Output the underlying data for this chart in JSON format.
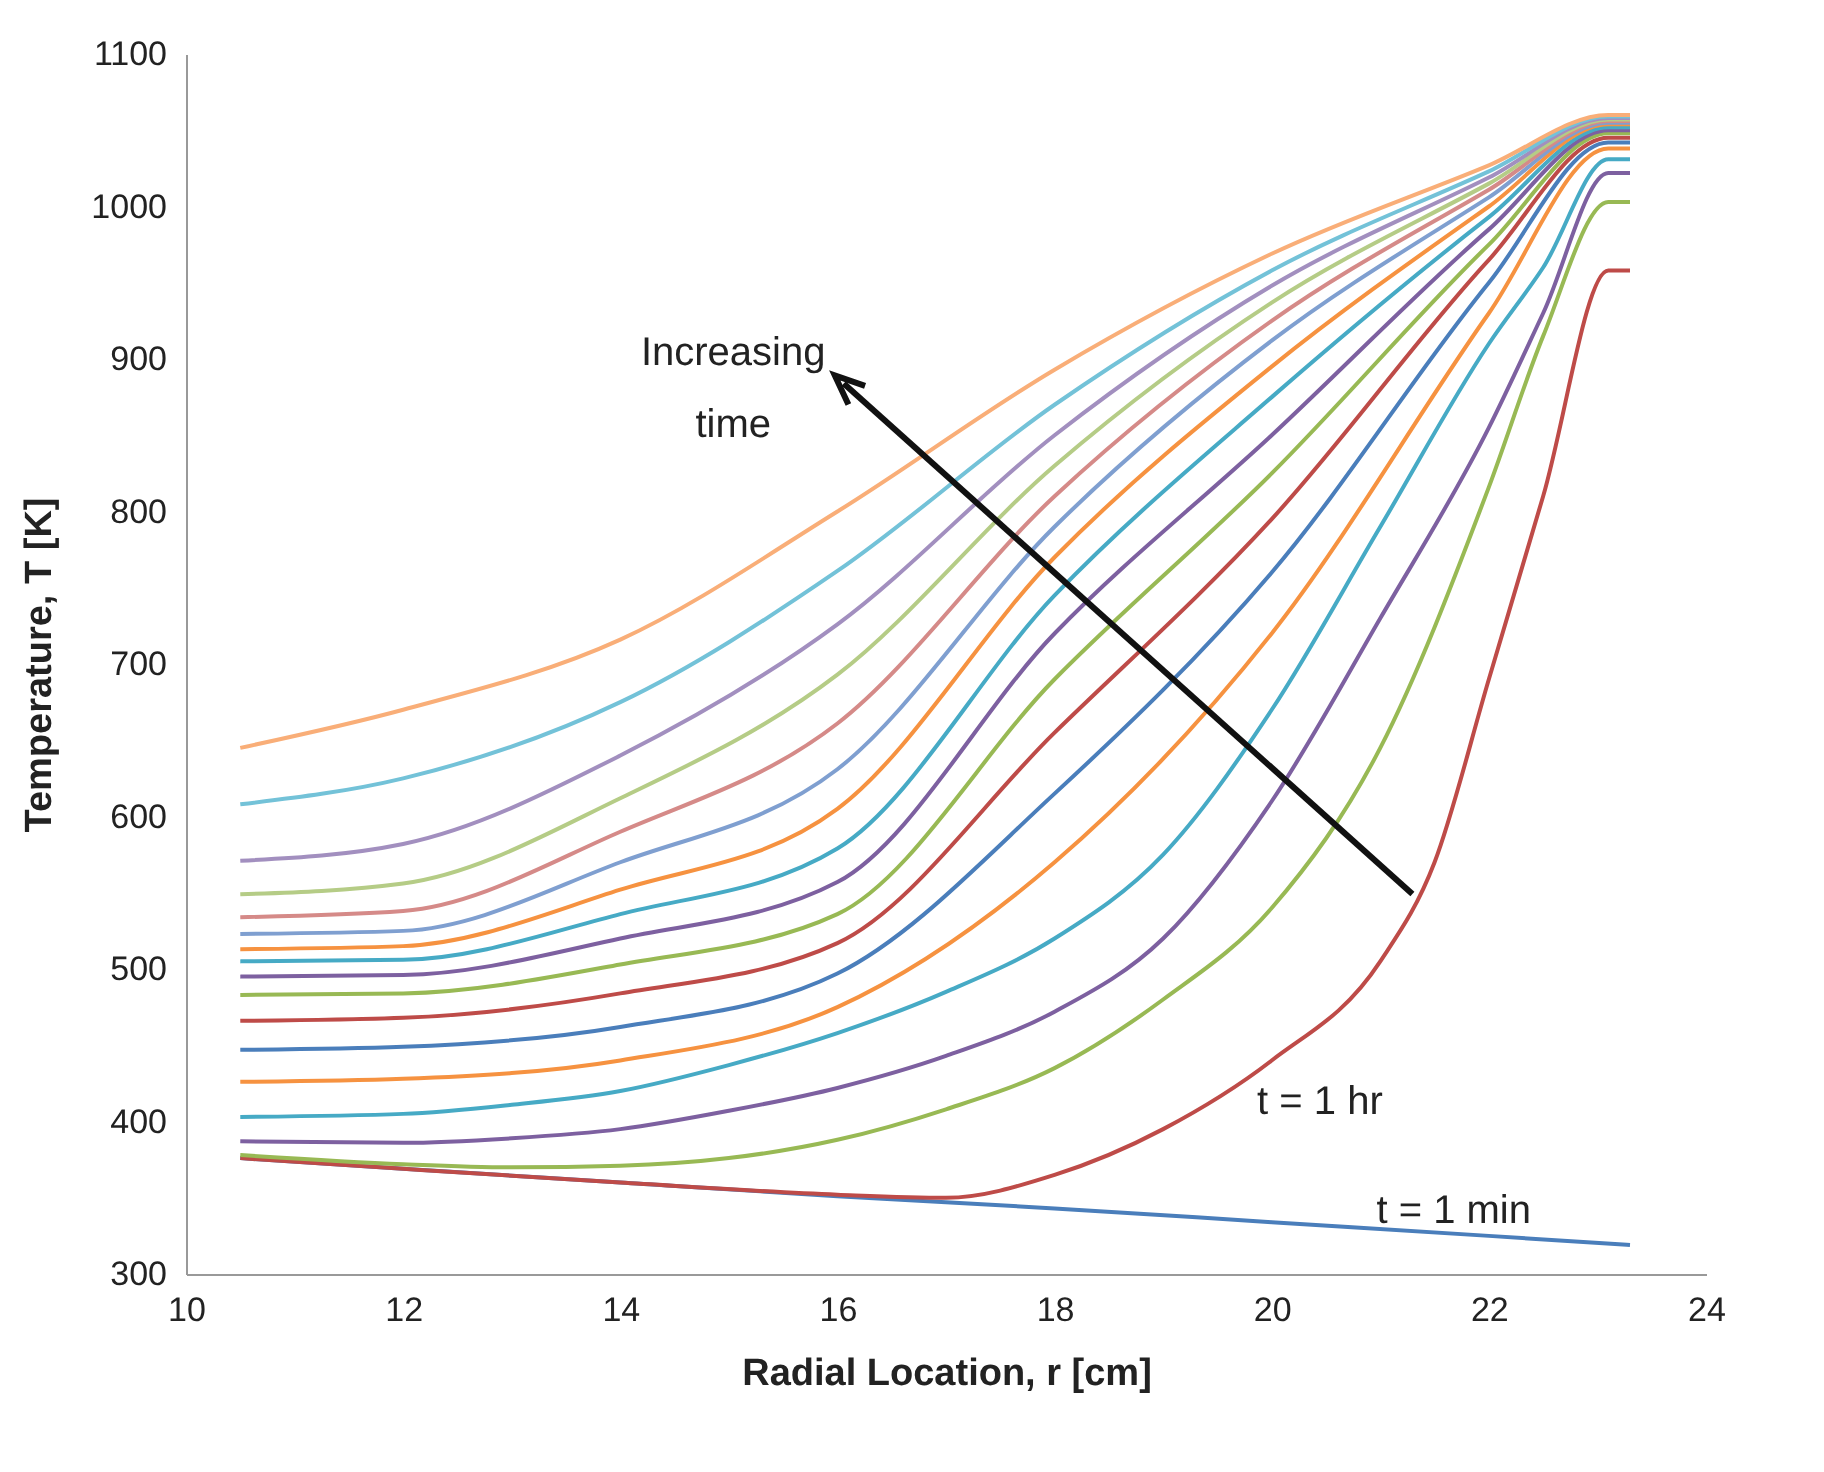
{
  "chart_data": {
    "type": "line",
    "xlabel": "Radial Location, r [cm]",
    "ylabel": "Temperature, T [K]",
    "xlim": [
      10,
      24
    ],
    "xticks": [
      10,
      12,
      14,
      16,
      18,
      20,
      22,
      24
    ],
    "ylim": [
      300,
      1100
    ],
    "yticks": [
      300,
      400,
      500,
      600,
      700,
      800,
      900,
      1000,
      1100
    ],
    "grid": false,
    "legend": false,
    "annotations": [
      "Increasing time",
      "t = 1 hr",
      "t = 1 min"
    ],
    "series": [
      {
        "color": "#4a7ebb",
        "x": [
          10.5,
          12,
          14,
          16,
          18,
          20,
          22,
          23.3
        ],
        "values": [
          376,
          369,
          360,
          351,
          343,
          334,
          325,
          319
        ]
      },
      {
        "color": "#be4b48",
        "x": [
          10.5,
          12,
          14,
          16,
          17,
          18,
          19,
          20,
          21,
          21.5,
          22,
          22.5,
          23.1,
          23.3
        ],
        "values": [
          376,
          369,
          360,
          352,
          350,
          365,
          395,
          440,
          505,
          570,
          690,
          810,
          958,
          958
        ]
      },
      {
        "color": "#98b954",
        "x": [
          10.5,
          12,
          13,
          14,
          15,
          16,
          17,
          18,
          19,
          20,
          21,
          22,
          22.5,
          23.1,
          23.3
        ],
        "values": [
          378,
          372,
          370,
          371,
          376,
          388,
          408,
          435,
          480,
          540,
          645,
          816,
          915,
          1003,
          1003
        ]
      },
      {
        "color": "#7d60a0",
        "x": [
          10.5,
          12,
          13,
          14,
          15,
          16,
          17,
          18,
          19,
          20,
          21,
          22,
          22.5,
          23.1,
          23.3
        ],
        "values": [
          387,
          386,
          389,
          395,
          407,
          422,
          443,
          472,
          520,
          610,
          730,
          855,
          930,
          1022,
          1022
        ]
      },
      {
        "color": "#46aac5",
        "x": [
          10.5,
          12,
          13,
          14,
          15,
          16,
          17,
          18,
          19,
          20,
          21,
          22,
          22.5,
          23.1,
          23.3
        ],
        "values": [
          403,
          405,
          411,
          420,
          437,
          458,
          485,
          520,
          575,
          670,
          790,
          910,
          960,
          1031,
          1031
        ]
      },
      {
        "color": "#f69240",
        "x": [
          10.5,
          12,
          14,
          16,
          18,
          20,
          22,
          23.1,
          23.3
        ],
        "values": [
          426,
          428,
          440,
          475,
          570,
          720,
          930,
          1038,
          1038
        ]
      },
      {
        "color": "#4a7ebb",
        "x": [
          10.5,
          12,
          14,
          16,
          18,
          20,
          22,
          23.1,
          23.3
        ],
        "values": [
          447,
          449,
          462,
          497,
          615,
          760,
          950,
          1042,
          1042
        ]
      },
      {
        "color": "#be4b48",
        "x": [
          10.5,
          12,
          14,
          16,
          18,
          20,
          22,
          23.1,
          23.3
        ],
        "values": [
          466,
          468,
          484,
          517,
          655,
          795,
          965,
          1045,
          1045
        ]
      },
      {
        "color": "#98b954",
        "x": [
          10.5,
          12,
          14,
          16,
          18,
          20,
          22,
          23.1,
          23.3
        ],
        "values": [
          483,
          484,
          503,
          536,
          690,
          825,
          975,
          1048,
          1048
        ]
      },
      {
        "color": "#7d60a0",
        "x": [
          10.5,
          12,
          14,
          16,
          18,
          20,
          22,
          23.1,
          23.3
        ],
        "values": [
          495,
          496,
          520,
          557,
          720,
          850,
          985,
          1050,
          1050
        ]
      },
      {
        "color": "#46aac5",
        "x": [
          10.5,
          12,
          14,
          16,
          18,
          20,
          22,
          23.1,
          23.3
        ],
        "values": [
          505,
          506,
          536,
          579,
          745,
          875,
          993,
          1052,
          1052
        ]
      },
      {
        "color": "#f69240",
        "x": [
          10.5,
          12,
          14,
          16,
          18,
          20,
          22,
          23.1,
          23.3
        ],
        "values": [
          513,
          515,
          552,
          605,
          770,
          895,
          1000,
          1054,
          1054
        ]
      },
      {
        "color": "#7f9fd0",
        "x": [
          10.5,
          12,
          14,
          16,
          18,
          20,
          22,
          23.1,
          23.3
        ],
        "values": [
          523,
          525,
          570,
          631,
          790,
          912,
          1006,
          1055,
          1055
        ]
      },
      {
        "color": "#d58a88",
        "x": [
          10.5,
          12,
          14,
          16,
          18,
          20,
          22,
          23.1,
          23.3
        ],
        "values": [
          534,
          538,
          590,
          661,
          810,
          925,
          1011,
          1056,
          1056
        ]
      },
      {
        "color": "#b5cc86",
        "x": [
          10.5,
          12,
          14,
          16,
          18,
          20,
          22,
          23.1,
          23.3
        ],
        "values": [
          549,
          556,
          612,
          693,
          830,
          937,
          1015,
          1057,
          1057
        ]
      },
      {
        "color": "#a28fbf",
        "x": [
          10.5,
          12,
          14,
          16,
          18,
          20,
          22,
          23.1,
          23.3
        ],
        "values": [
          571,
          582,
          640,
          726,
          850,
          948,
          1019,
          1058,
          1058
        ]
      },
      {
        "color": "#73c2d8",
        "x": [
          10.5,
          12,
          14,
          16,
          18,
          20,
          22,
          23.1,
          23.3
        ],
        "values": [
          608,
          625,
          675,
          761,
          870,
          958,
          1023,
          1059,
          1059
        ]
      },
      {
        "color": "#f9ae78",
        "x": [
          10.5,
          12,
          14,
          16,
          18,
          20,
          22,
          23.1,
          23.3
        ],
        "values": [
          645,
          670,
          716,
          800,
          893,
          969,
          1027,
          1060,
          1060
        ]
      }
    ]
  }
}
